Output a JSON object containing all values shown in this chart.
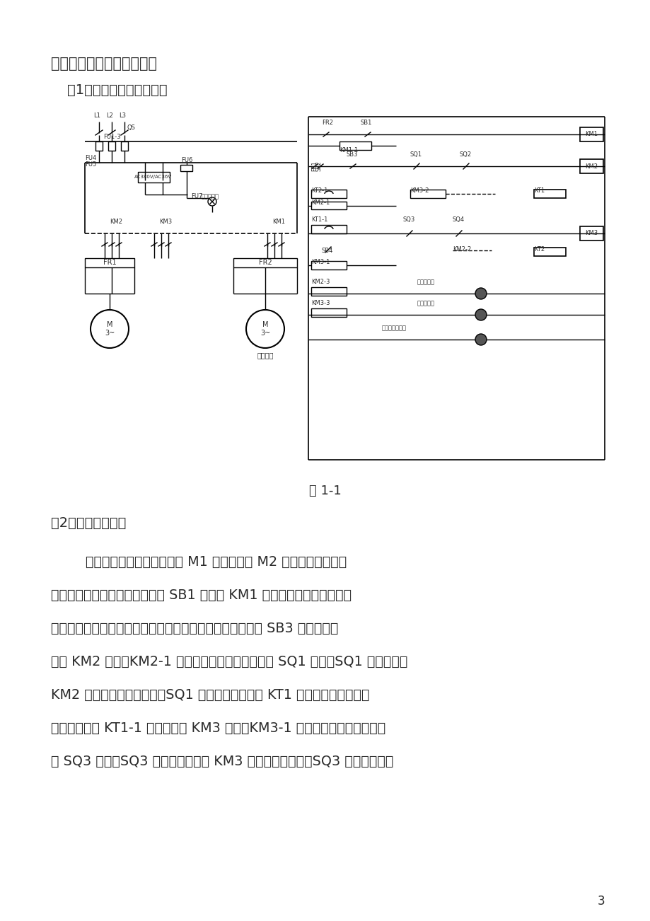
{
  "bg_color": "#ffffff",
  "title1": "一．正反间歇控制电路介绍",
  "title2": "（1）电气控制电路原理图",
  "fig_caption": "图 1-1",
  "section2": "（2）控制工作原理",
  "lines": [
    "        正反间歇控制电路有主电机 M1 与油泵电机 M2 拖动，实现正反双",
    "向运行以及自动停止功能。按下 SB1 键线圈 KM1 得电吸并自锁，油泵电机",
    "启动运转。油泵电机启动后可选择主电机的运动方向，选择 SB3 键闭合时，",
    "线圈 KM2 得电，KM2-1 自锁，机械正向运动，到达 SQ1 处时，SQ1 常闭断开，",
    "KM2 线圈断电，停止前进，SQ1 常开闭合，定时器 KT1 得电，计时开始，时",
    "间到辅助触点 KT1-1 吸合，线圈 KM3 得电，KM3-1 自锁，开始反向运行，到",
    "达 SQ3 处时，SQ3 常闭断开，线圈 KM3 断电，停止前进，SQ3 常开闭合，定"
  ],
  "page_num": "3",
  "text_color": "#2a2a2a"
}
